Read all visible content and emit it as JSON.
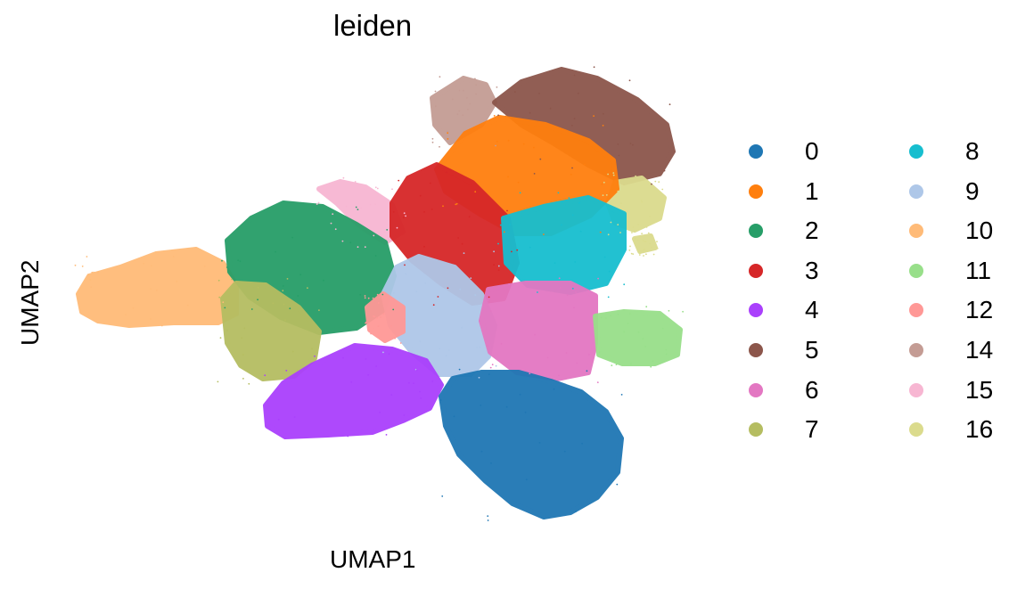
{
  "chart_data": {
    "type": "scatter",
    "title": "leiden",
    "xlabel": "UMAP1",
    "ylabel": "UMAP2",
    "grid": false,
    "axes_frame": false,
    "legend_position": "right",
    "legend_columns": 2,
    "series": [
      {
        "name": "0",
        "color": "#1f77b4"
      },
      {
        "name": "1",
        "color": "#ff7f0e"
      },
      {
        "name": "2",
        "color": "#279e68"
      },
      {
        "name": "3",
        "color": "#d62728"
      },
      {
        "name": "4",
        "color": "#aa40fc"
      },
      {
        "name": "5",
        "color": "#8c564b"
      },
      {
        "name": "6",
        "color": "#e377c2"
      },
      {
        "name": "7",
        "color": "#b5bd61"
      },
      {
        "name": "8",
        "color": "#17becf"
      },
      {
        "name": "9",
        "color": "#aec7e8"
      },
      {
        "name": "10",
        "color": "#ffbb78"
      },
      {
        "name": "11",
        "color": "#98df8a"
      },
      {
        "name": "12",
        "color": "#ff9896"
      },
      {
        "name": "14",
        "color": "#c49c94"
      },
      {
        "name": "15",
        "color": "#f7b6d2"
      },
      {
        "name": "16",
        "color": "#dbdb8d"
      }
    ]
  }
}
